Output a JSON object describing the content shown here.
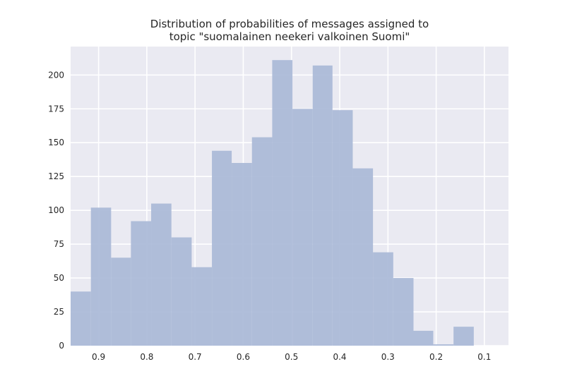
{
  "chart_data": {
    "type": "bar",
    "title": [
      "Distribution of probabilities of messages assigned to",
      "topic \"suomalainen neekeri valkoinen Suomi\""
    ],
    "xlabel": "",
    "ylabel": "",
    "x_axis_reversed": true,
    "xlim": [
      0.958,
      0.05
    ],
    "ylim": [
      0,
      221
    ],
    "grid": true,
    "x_ticks": [
      0.9,
      0.8,
      0.7,
      0.6,
      0.5,
      0.4,
      0.3,
      0.2,
      0.1
    ],
    "x_tick_labels": [
      "0.9",
      "0.8",
      "0.7",
      "0.6",
      "0.5",
      "0.4",
      "0.3",
      "0.2",
      "0.1"
    ],
    "y_ticks": [
      0,
      25,
      50,
      75,
      100,
      125,
      150,
      175,
      200
    ],
    "y_tick_labels": [
      "0",
      "25",
      "50",
      "75",
      "100",
      "125",
      "150",
      "175",
      "200"
    ],
    "bin_edges": [
      0.958,
      0.916,
      0.874,
      0.833,
      0.791,
      0.749,
      0.707,
      0.665,
      0.624,
      0.582,
      0.54,
      0.498,
      0.456,
      0.415,
      0.373,
      0.331,
      0.289,
      0.247,
      0.206,
      0.164,
      0.122
    ],
    "values": [
      40,
      102,
      65,
      92,
      105,
      80,
      58,
      144,
      135,
      154,
      211,
      175,
      207,
      174,
      131,
      69,
      50,
      11,
      1,
      14
    ],
    "bar_color": "#A9B9D7",
    "background_color": "#EAEAF2",
    "grid_color": "#FFFFFF"
  }
}
